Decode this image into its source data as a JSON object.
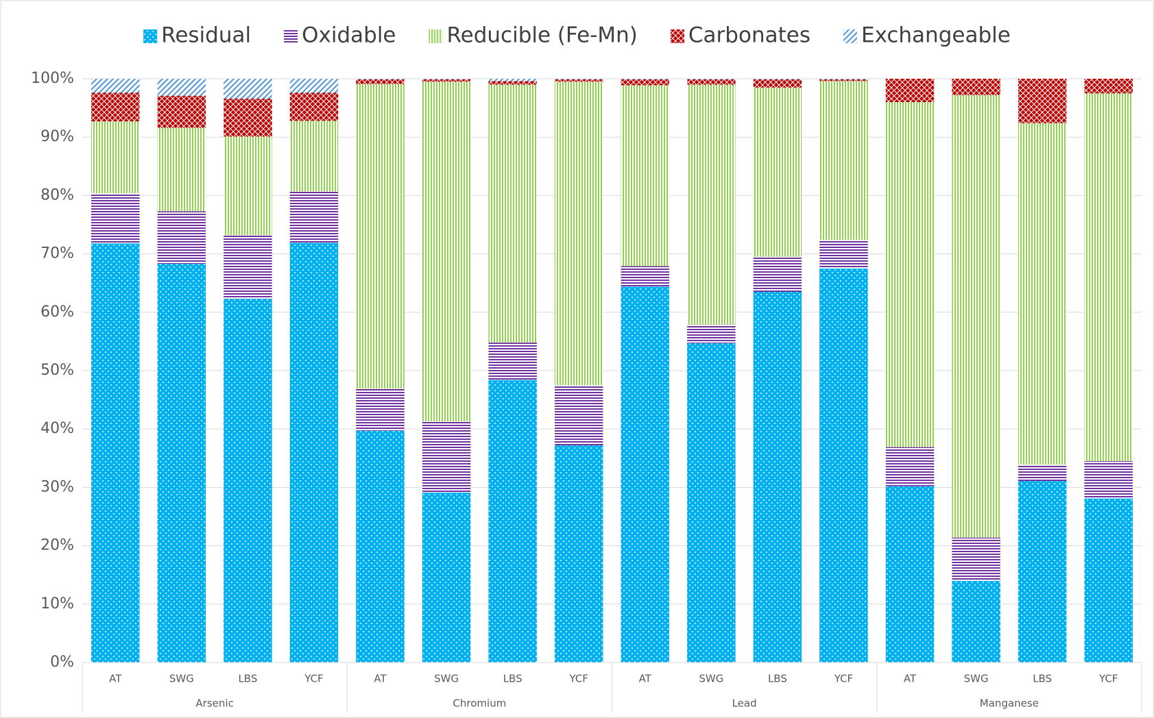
{
  "chart_data": {
    "type": "stacked_bar",
    "categories": [
      "AT",
      "SWG",
      "LBS",
      "YCF",
      "AT",
      "SWG",
      "LBS",
      "YCF",
      "AT",
      "SWG",
      "LBS",
      "YCF",
      "AT",
      "SWG",
      "LBS",
      "YCF"
    ],
    "groups": [
      "Arsenic",
      "Chromium",
      "Lead",
      "Manganese"
    ],
    "series": [
      {
        "name": "Residual",
        "color": "#00b0f0",
        "pattern": "dots",
        "values": [
          71.8,
          68.3,
          62.3,
          71.9,
          39.7,
          29.1,
          48.4,
          37.2,
          64.4,
          54.7,
          63.5,
          67.5,
          30.2,
          14.0,
          31.1,
          28.1
        ]
      },
      {
        "name": "Oxidable",
        "color": "#7030a0",
        "pattern": "horizontal",
        "values": [
          8.6,
          9.0,
          10.9,
          8.8,
          7.2,
          12.2,
          6.4,
          10.3,
          3.5,
          3.2,
          6.0,
          4.9,
          6.7,
          7.4,
          2.8,
          6.4
        ]
      },
      {
        "name": "Reducible (Fe-Mn)",
        "color": "#92d050",
        "pattern": "vertical",
        "values": [
          12.3,
          14.3,
          16.9,
          12.1,
          52.2,
          58.2,
          44.2,
          52.0,
          31.0,
          41.1,
          29.0,
          27.2,
          59.1,
          75.8,
          58.5,
          63.0
        ]
      },
      {
        "name": "Carbonates",
        "color": "#c00000",
        "pattern": "checker",
        "values": [
          4.9,
          5.5,
          6.5,
          4.8,
          0.8,
          0.4,
          0.6,
          0.4,
          1.0,
          0.9,
          1.4,
          0.3,
          4.0,
          2.8,
          7.6,
          2.5
        ]
      },
      {
        "name": "Exchangeable",
        "color": "#5b9bd5",
        "pattern": "diagonal",
        "values": [
          2.4,
          2.9,
          3.4,
          2.4,
          0.1,
          0.1,
          0.4,
          0.1,
          0.1,
          0.1,
          0.1,
          0.1,
          0,
          0,
          0,
          0
        ]
      }
    ],
    "ylim": [
      0,
      100
    ],
    "yticks": [
      {
        "value": 0,
        "label": "0%"
      },
      {
        "value": 10,
        "label": "10%"
      },
      {
        "value": 20,
        "label": "20%"
      },
      {
        "value": 30,
        "label": "30%"
      },
      {
        "value": 40,
        "label": "40%"
      },
      {
        "value": 50,
        "label": "50%"
      },
      {
        "value": 60,
        "label": "60%"
      },
      {
        "value": 70,
        "label": "70%"
      },
      {
        "value": 80,
        "label": "80%"
      },
      {
        "value": 90,
        "label": "90%"
      },
      {
        "value": 100,
        "label": "100%"
      }
    ],
    "grid": true,
    "legend": "top"
  }
}
